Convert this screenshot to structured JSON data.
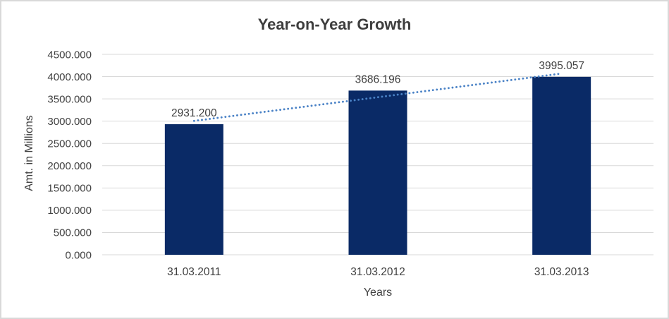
{
  "chart_data": {
    "type": "bar",
    "title": "Year-on-Year Growth",
    "xlabel": "Years",
    "ylabel": "Amt. in Millions",
    "categories": [
      "31.03.2011",
      "31.03.2012",
      "31.03.2013"
    ],
    "values": [
      2931.2,
      3686.196,
      3995.057
    ],
    "data_labels": [
      "2931.200",
      "3686.196",
      "3995.057"
    ],
    "ylim": [
      0,
      4500
    ],
    "ytick_step": 500,
    "ytick_labels": [
      "0.000",
      "500.000",
      "1000.000",
      "1500.000",
      "2000.000",
      "2500.000",
      "3000.000",
      "3500.000",
      "4000.000",
      "4500.000"
    ],
    "grid": true,
    "legend": "none",
    "trendline": {
      "type": "linear",
      "style": "dotted"
    },
    "colors": {
      "bar": "#0a2a66",
      "trendline": "#4a82c6",
      "gridline": "#d9d9d9",
      "axis_text": "#404040",
      "title_text": "#3d3d3d",
      "frame_border": "#d9d9d9",
      "background": "#ffffff"
    }
  }
}
